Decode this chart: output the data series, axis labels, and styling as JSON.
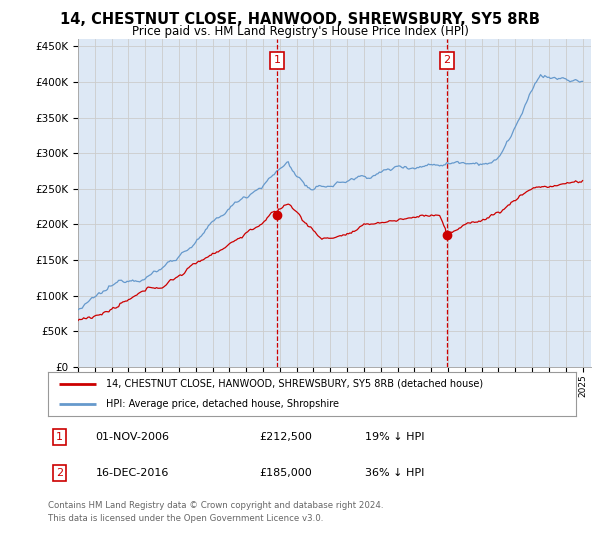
{
  "title": "14, CHESTNUT CLOSE, HANWOOD, SHREWSBURY, SY5 8RB",
  "subtitle": "Price paid vs. HM Land Registry's House Price Index (HPI)",
  "legend_line1": "14, CHESTNUT CLOSE, HANWOOD, SHREWSBURY, SY5 8RB (detached house)",
  "legend_line2": "HPI: Average price, detached house, Shropshire",
  "annotation1_date": "01-NOV-2006",
  "annotation1_price": "£212,500",
  "annotation1_hpi": "19% ↓ HPI",
  "annotation2_date": "16-DEC-2016",
  "annotation2_price": "£185,000",
  "annotation2_hpi": "36% ↓ HPI",
  "footnote": "Contains HM Land Registry data © Crown copyright and database right 2024.\nThis data is licensed under the Open Government Licence v3.0.",
  "hpi_color": "#6699cc",
  "price_color": "#cc0000",
  "annotation_box_color": "#cc0000",
  "vline_color": "#cc0000",
  "background_color": "#dde8f5",
  "plot_bg": "#ffffff",
  "grid_color": "#cccccc",
  "shade_color": "#dde8f5"
}
